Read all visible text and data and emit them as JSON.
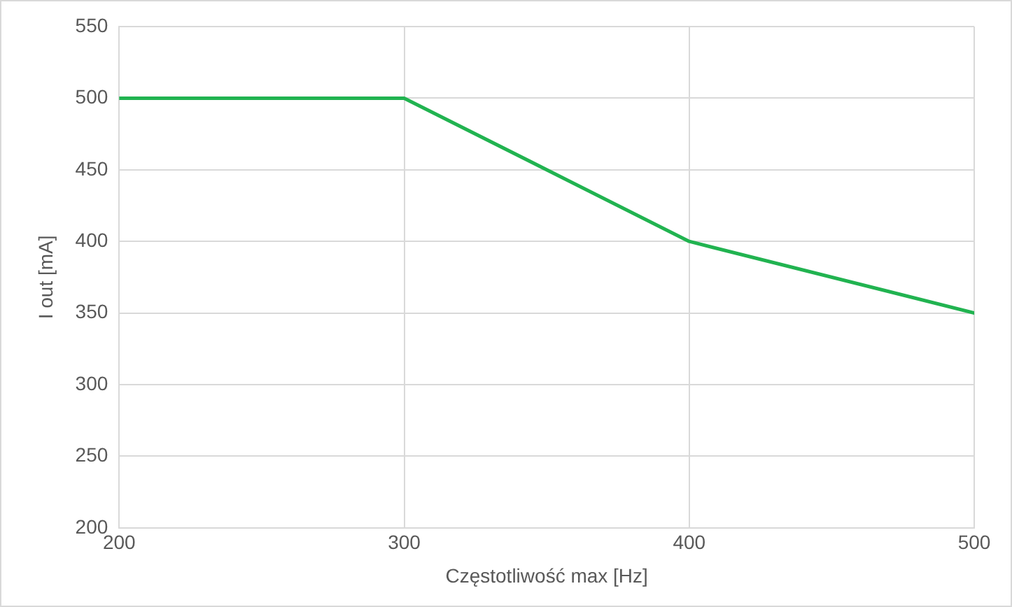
{
  "chart_data": {
    "type": "line",
    "xlabel": "Częstotliwość max [Hz]",
    "ylabel": "I out [mA]",
    "x": [
      200,
      300,
      400,
      500
    ],
    "series": [
      {
        "color": "#21b350",
        "values": [
          500,
          500,
          400,
          350
        ]
      }
    ],
    "xlim": [
      200,
      500
    ],
    "xticks": [
      200,
      300,
      400,
      500
    ],
    "ylim": [
      200,
      550
    ],
    "yticks": [
      200,
      250,
      300,
      350,
      400,
      450,
      500,
      550
    ],
    "grid": true,
    "legend": false,
    "marker": "none",
    "line_style": "solid"
  }
}
